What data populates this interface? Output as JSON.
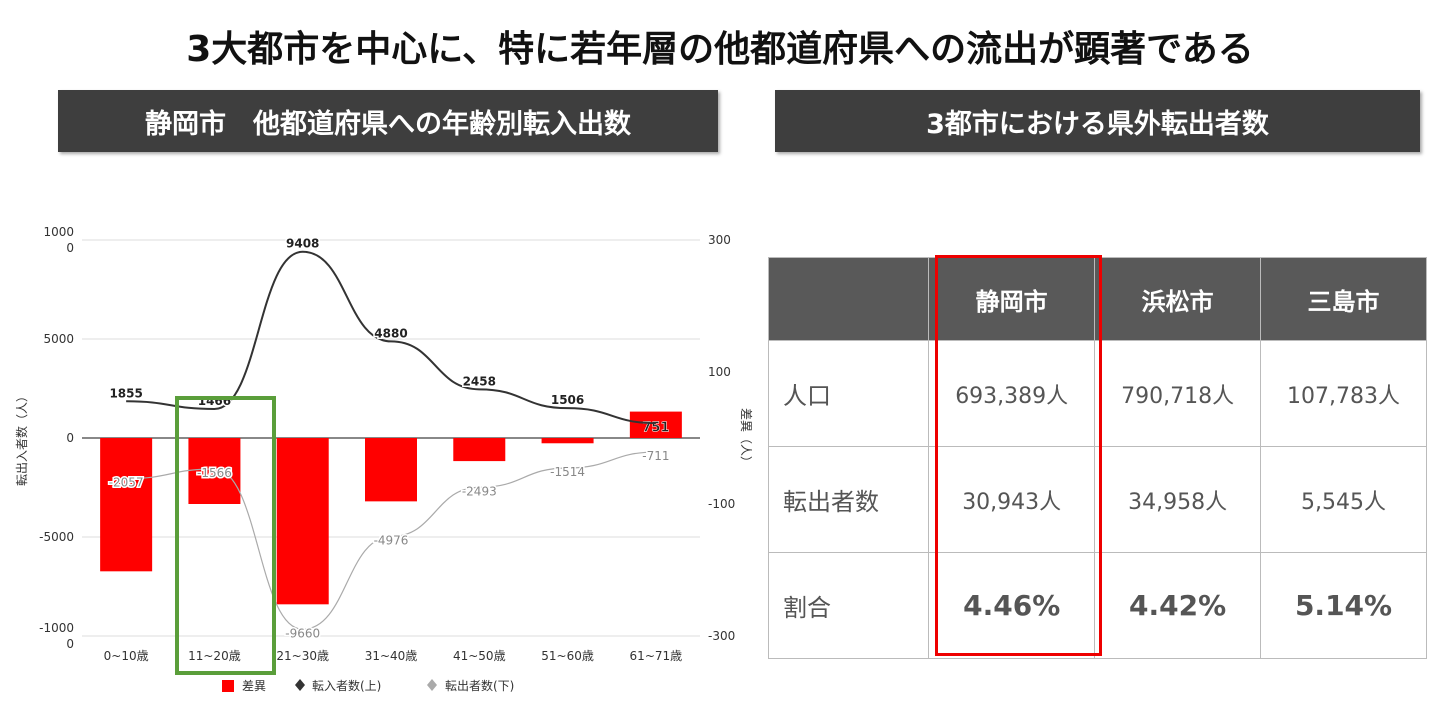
{
  "title": "3大都市を中心に、特に若年層の他都道府県への流出が顕著である",
  "left_header": "静岡市　他都道府県への年齢別転入出数",
  "right_header": "3都市における県外転出者数",
  "chart_data": {
    "type": "bar+line",
    "title": "静岡市　他都道府県への年齢別転入出数",
    "categories": [
      "0~10歳",
      "11~20歳",
      "21~30歳",
      "31~40歳",
      "41~50歳",
      "51~60歳",
      "61~71歳"
    ],
    "series": [
      {
        "name": "差異",
        "type": "bar",
        "axis": "right",
        "color": "#ff0000",
        "values": [
          -202,
          -100,
          -252,
          -96,
          -35,
          -8,
          40
        ],
        "labels": [
          "",
          "",
          "",
          "",
          "",
          "",
          "751"
        ]
      },
      {
        "name": "転入者数(上)",
        "type": "line",
        "axis": "left",
        "color": "#333333",
        "values": [
          1855,
          1466,
          9408,
          4880,
          2458,
          1506,
          751
        ]
      },
      {
        "name": "転出者数(下)",
        "type": "line",
        "axis": "left",
        "color": "#aaaaaa",
        "values": [
          -2057,
          -1566,
          -9660,
          -4976,
          -2493,
          -1514,
          -711
        ]
      }
    ],
    "ylabel": "転出入者数（人）",
    "y2label": "差異（人）",
    "ylim": [
      -10000,
      10000
    ],
    "y2lim": [
      -300,
      300
    ],
    "yticks": [
      "1000\n0",
      "5000",
      "0",
      "-5000",
      "-1000\n0"
    ],
    "y2ticks": [
      "300",
      "100",
      "-100",
      "-300"
    ],
    "legend_position": "bottom"
  },
  "table": {
    "headers": [
      "",
      "静岡市",
      "浜松市",
      "三島市"
    ],
    "rows": [
      {
        "label": "人口",
        "values": [
          "693,389人",
          "790,718人",
          "107,783人"
        ]
      },
      {
        "label": "転出者数",
        "values": [
          "30,943人",
          "34,958人",
          "5,545人"
        ]
      },
      {
        "label": "割合",
        "values": [
          "4.46%",
          "4.42%",
          "5.14%"
        ]
      }
    ]
  }
}
